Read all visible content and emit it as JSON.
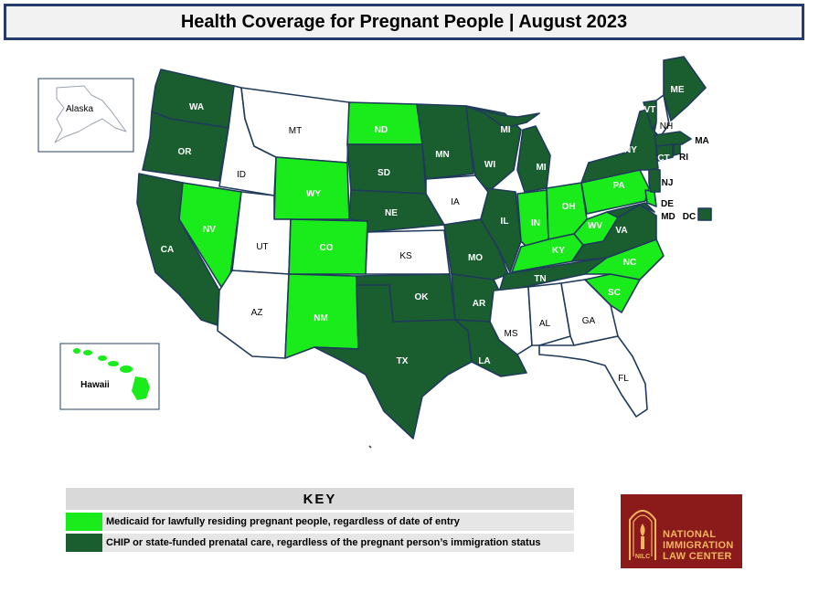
{
  "title": "Health Coverage for Pregnant People  |  August 2023",
  "colors": {
    "medicaid": "#1aeb1a",
    "chip": "#1a5e30",
    "none": "#ffffff",
    "outline": "#1f3a5a"
  },
  "insets": {
    "alaska": "Alaska",
    "hawaii": "Hawaii"
  },
  "states": {
    "WA": "chip",
    "OR": "chip",
    "CA": "chip",
    "NV": "medicaid",
    "ID": "none",
    "MT": "none",
    "WY": "medicaid",
    "UT": "none",
    "AZ": "none",
    "CO": "medicaid",
    "NM": "medicaid",
    "ND": "medicaid",
    "SD": "chip",
    "NE": "chip",
    "KS": "none",
    "OK": "chip",
    "TX": "chip",
    "MN": "chip",
    "IA": "none",
    "MO": "chip",
    "AR": "chip",
    "LA": "chip",
    "WI": "chip",
    "IL": "chip",
    "MS": "none",
    "MI": "chip",
    "IN": "medicaid",
    "OH": "medicaid",
    "KY": "medicaid",
    "TN": "chip",
    "AL": "none",
    "GA": "none",
    "FL": "none",
    "SC": "medicaid",
    "NC": "medicaid",
    "VA": "chip",
    "WV": "medicaid",
    "PA": "medicaid",
    "NY": "chip",
    "VT": "chip",
    "NH": "none",
    "ME": "chip",
    "MA": "chip",
    "RI": "chip",
    "CT": "chip",
    "NJ": "chip",
    "DE": "medicaid",
    "MD": "chip",
    "DC": "chip",
    "AK": "none",
    "HI": "medicaid"
  },
  "key": {
    "title": "KEY",
    "items": [
      {
        "category": "medicaid",
        "text": "Medicaid for lawfully residing pregnant people, regardless of date of entry"
      },
      {
        "category": "chip",
        "text": "CHIP or state-funded prenatal care, regardless of the pregnant person’s immigration status"
      }
    ]
  },
  "logo": {
    "line1": "NATIONAL",
    "line2": "IMMIGRATION",
    "line3": "LAW CENTER",
    "mark": "NILC"
  }
}
